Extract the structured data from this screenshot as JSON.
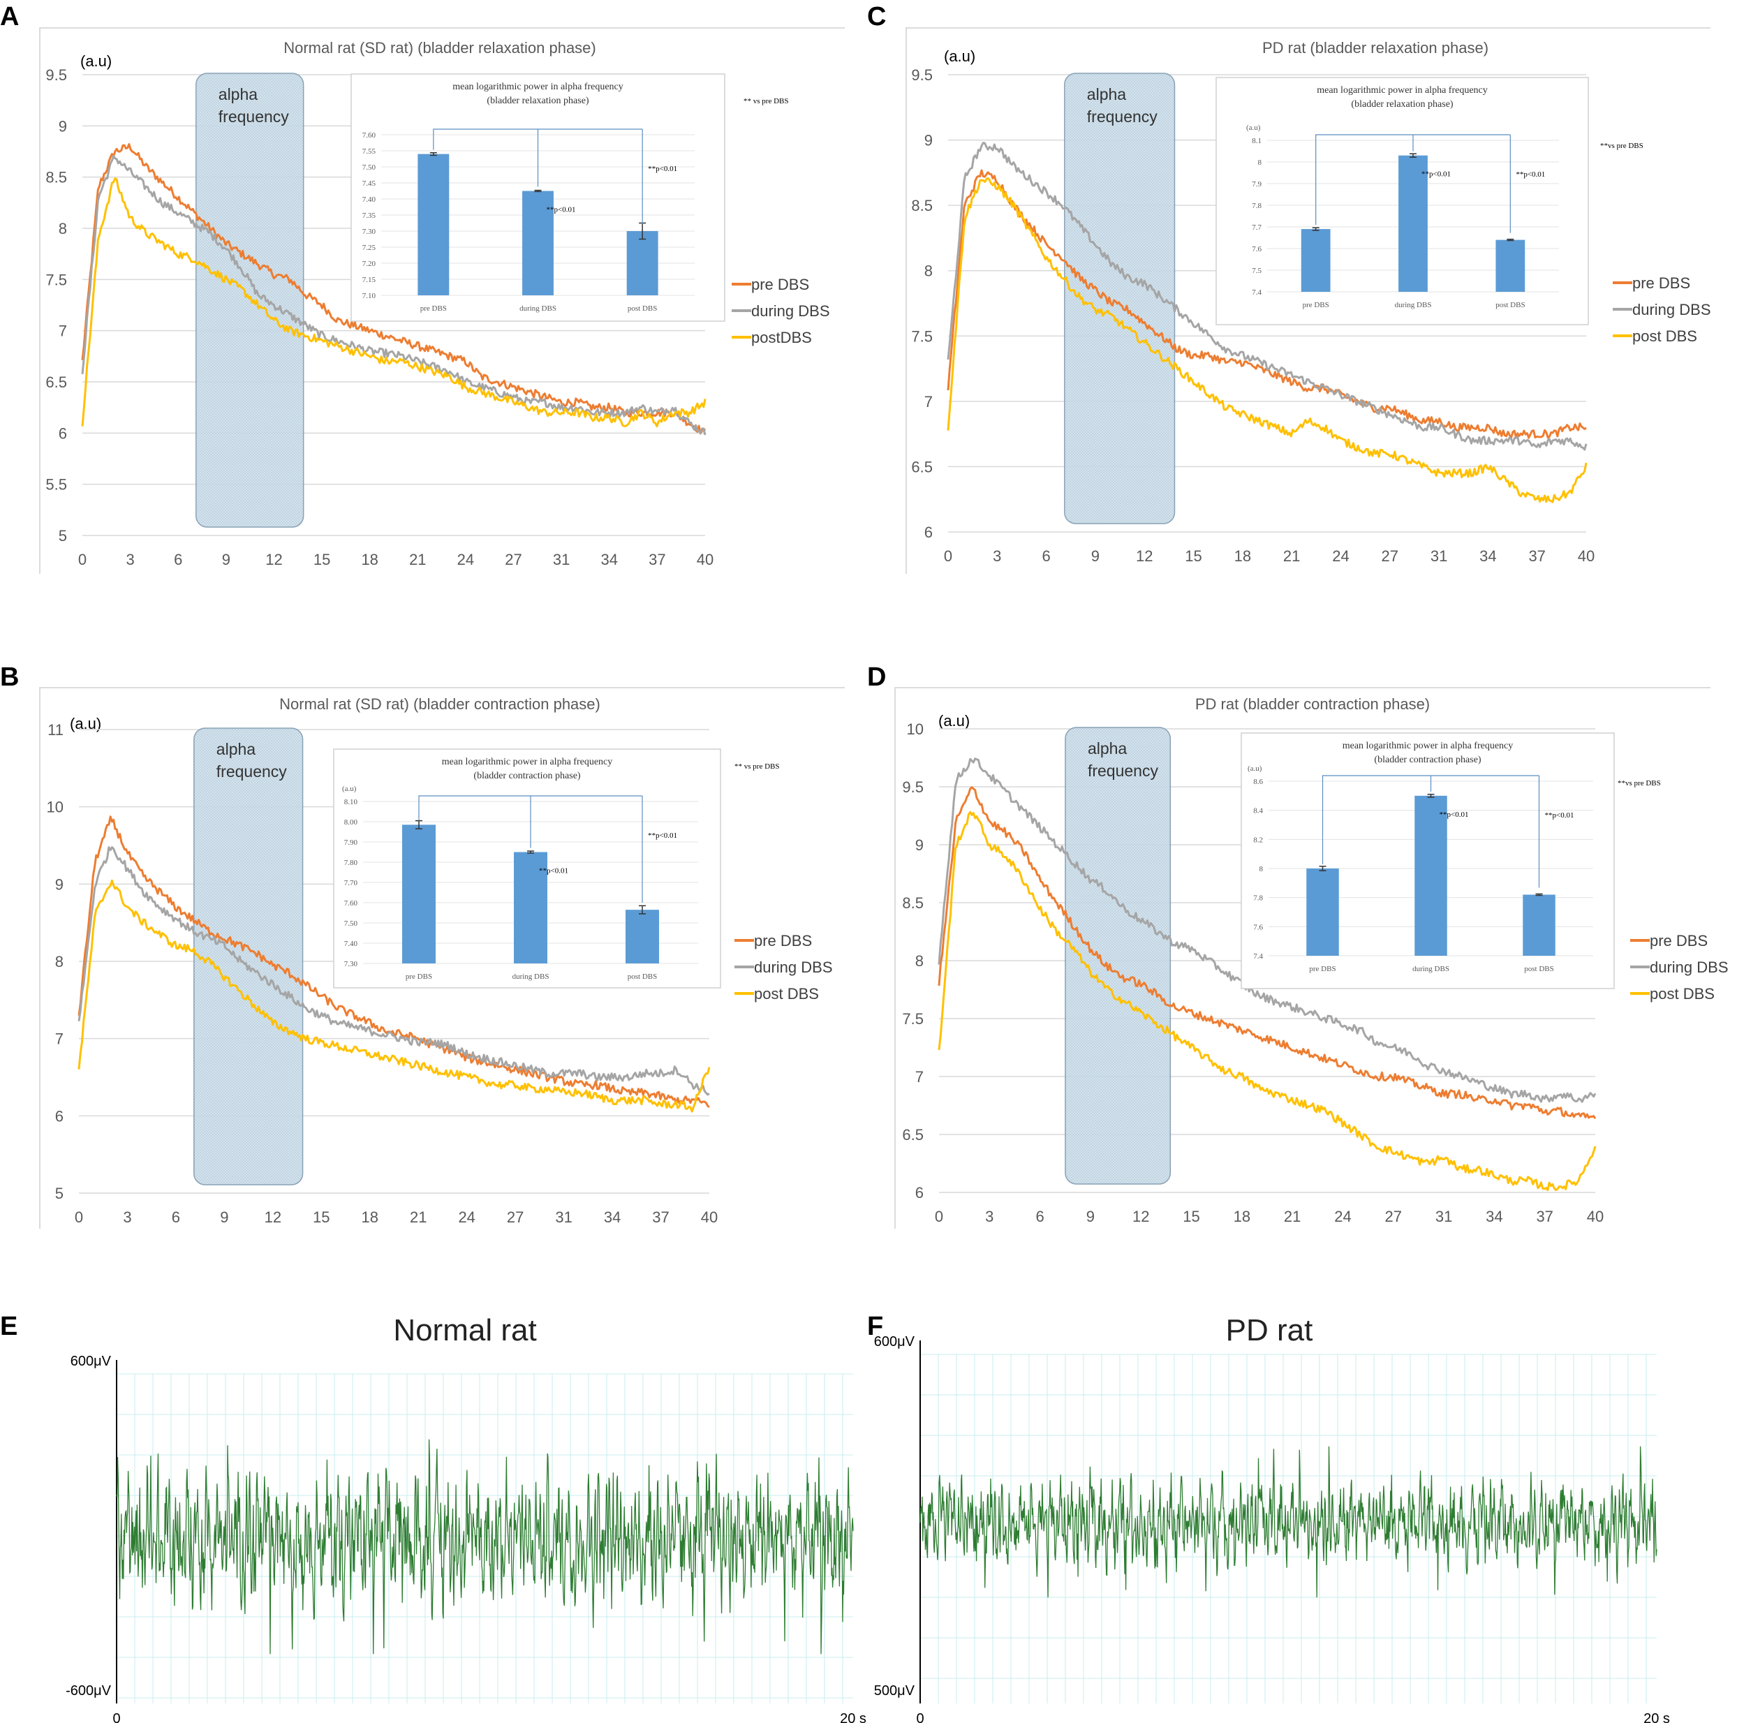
{
  "chart_data": [
    {
      "panel": "A",
      "type": "line",
      "title": "Normal rat (SD rat) (bladder relaxation phase)",
      "ylabel": "(a.u)",
      "x_tick_labels": [
        "0",
        "3",
        "6",
        "9",
        "12",
        "15",
        "18",
        "21",
        "24",
        "27",
        "31",
        "34",
        "37",
        "40"
      ],
      "ylim": [
        5,
        9.5
      ],
      "y_ticks": [
        "5",
        "5.5",
        "6",
        "6.5",
        "7",
        "7.5",
        "8",
        "8.5",
        "9",
        "9.5"
      ],
      "band_label": [
        "alpha",
        "frequency"
      ],
      "band_range": [
        7.3,
        14.2
      ],
      "series": [
        {
          "name": "pre DBS",
          "color": "#ED7D31",
          "values": [
            6.7,
            8.4,
            8.75,
            8.8,
            8.6,
            8.45,
            8.3,
            8.15,
            8.0,
            7.85,
            7.75,
            7.65,
            7.55,
            7.5,
            7.35,
            7.25,
            7.1,
            7.05,
            7.0,
            6.95,
            6.9,
            6.85,
            6.8,
            6.75,
            6.7,
            6.55,
            6.5,
            6.45,
            6.4,
            6.35,
            6.3,
            6.3,
            6.25,
            6.25,
            6.2,
            6.2,
            6.2,
            6.2,
            6.1,
            6.0
          ]
        },
        {
          "name": "during DBS",
          "color": "#A5A5A5",
          "values": [
            6.6,
            8.3,
            8.7,
            8.55,
            8.4,
            8.25,
            8.15,
            8.05,
            7.95,
            7.8,
            7.6,
            7.35,
            7.25,
            7.15,
            7.05,
            6.95,
            6.9,
            6.85,
            6.8,
            6.78,
            6.75,
            6.7,
            6.65,
            6.6,
            6.5,
            6.45,
            6.4,
            6.35,
            6.3,
            6.3,
            6.25,
            6.25,
            6.2,
            6.2,
            6.2,
            6.25,
            6.2,
            6.25,
            6.1,
            6.0
          ]
        },
        {
          "name": "postDBS",
          "color": "#FFC000",
          "values": [
            6.1,
            7.9,
            8.5,
            8.1,
            7.95,
            7.85,
            7.75,
            7.7,
            7.6,
            7.5,
            7.4,
            7.25,
            7.1,
            7.0,
            6.95,
            6.9,
            6.85,
            6.8,
            6.75,
            6.7,
            6.7,
            6.65,
            6.6,
            6.55,
            6.45,
            6.4,
            6.35,
            6.3,
            6.25,
            6.2,
            6.2,
            6.2,
            6.15,
            6.15,
            6.1,
            6.2,
            6.1,
            6.2,
            6.2,
            6.3
          ]
        }
      ],
      "inset": {
        "title": [
          "mean logarithmic power in alpha frequency",
          "(bladder relaxation phase)"
        ],
        "unit_label": "",
        "categories": [
          "pre DBS",
          "during DBS",
          "post DBS"
        ],
        "values": [
          7.54,
          7.425,
          7.3
        ],
        "errors": [
          0.004,
          0.002,
          0.025
        ],
        "ylim": [
          7.1,
          7.6
        ],
        "y_ticks": [
          "7.10",
          "7.15",
          "7.20",
          "7.25",
          "7.30",
          "7.35",
          "7.40",
          "7.45",
          "7.50",
          "7.55",
          "7.60"
        ],
        "sig_labels": [
          "**p<0.01",
          "**p<0.01"
        ],
        "note": "** vs pre DBS"
      }
    },
    {
      "panel": "C",
      "type": "line",
      "title": "PD rat (bladder relaxation phase)",
      "ylabel": "(a.u)",
      "x_tick_labels": [
        "0",
        "3",
        "6",
        "9",
        "12",
        "15",
        "18",
        "21",
        "24",
        "27",
        "31",
        "34",
        "37",
        "40"
      ],
      "ylim": [
        6,
        9.5
      ],
      "y_ticks": [
        "6",
        "6.5",
        "7",
        "7.5",
        "8",
        "8.5",
        "9",
        "9.5"
      ],
      "band_label": [
        "alpha",
        "frequency"
      ],
      "band_range": [
        7.3,
        14.2
      ],
      "series": [
        {
          "name": "pre DBS",
          "color": "#ED7D31",
          "values": [
            7.1,
            8.5,
            8.75,
            8.7,
            8.5,
            8.35,
            8.2,
            8.1,
            7.95,
            7.85,
            7.75,
            7.7,
            7.6,
            7.5,
            7.4,
            7.35,
            7.35,
            7.3,
            7.3,
            7.25,
            7.2,
            7.15,
            7.1,
            7.1,
            7.05,
            7.0,
            6.95,
            6.95,
            6.9,
            6.85,
            6.85,
            6.8,
            6.8,
            6.8,
            6.75,
            6.75,
            6.75,
            6.75,
            6.8,
            6.8
          ]
        },
        {
          "name": "during DBS",
          "color": "#A5A5A5",
          "values": [
            7.3,
            8.7,
            8.95,
            8.95,
            8.8,
            8.7,
            8.6,
            8.5,
            8.35,
            8.2,
            8.05,
            7.95,
            7.9,
            7.8,
            7.7,
            7.6,
            7.5,
            7.4,
            7.35,
            7.3,
            7.25,
            7.2,
            7.15,
            7.1,
            7.05,
            7.0,
            6.95,
            6.9,
            6.85,
            6.8,
            6.8,
            6.75,
            6.7,
            6.7,
            6.7,
            6.7,
            6.65,
            6.7,
            6.7,
            6.65
          ]
        },
        {
          "name": "post DBS",
          "color": "#FFC000",
          "values": [
            6.8,
            8.4,
            8.7,
            8.65,
            8.5,
            8.3,
            8.1,
            7.95,
            7.8,
            7.7,
            7.65,
            7.55,
            7.45,
            7.35,
            7.25,
            7.15,
            7.05,
            6.95,
            6.9,
            6.85,
            6.8,
            6.75,
            6.85,
            6.8,
            6.7,
            6.65,
            6.6,
            6.6,
            6.55,
            6.5,
            6.45,
            6.45,
            6.45,
            6.5,
            6.4,
            6.3,
            6.25,
            6.25,
            6.3,
            6.5
          ]
        }
      ],
      "inset": {
        "title": [
          "mean logarithmic power in alpha frequency",
          "(bladder relaxation phase)"
        ],
        "unit_label": "(a.u)",
        "categories": [
          "pre DBS",
          "during DBS",
          "post DBS"
        ],
        "values": [
          7.69,
          8.03,
          7.64
        ],
        "errors": [
          0.006,
          0.008,
          0.003
        ],
        "ylim": [
          7.4,
          8.1
        ],
        "y_ticks": [
          "7.4",
          "7.5",
          "7.6",
          "7.7",
          "7.8",
          "7.9",
          "8",
          "8.1"
        ],
        "sig_labels": [
          "**p<0.01",
          "**p<0.01"
        ],
        "note": "**vs pre DBS"
      }
    },
    {
      "panel": "B",
      "type": "line",
      "title": "Normal rat (SD rat) (bladder contraction phase)",
      "ylabel": "(a.u)",
      "x_tick_labels": [
        "0",
        "3",
        "6",
        "9",
        "12",
        "15",
        "18",
        "21",
        "24",
        "27",
        "31",
        "34",
        "37",
        "40"
      ],
      "ylim": [
        5,
        11
      ],
      "y_ticks": [
        "5",
        "6",
        "7",
        "8",
        "9",
        "10",
        "11"
      ],
      "band_label": [
        "alpha",
        "frequency"
      ],
      "band_range": [
        7.3,
        14.2
      ],
      "series": [
        {
          "name": "pre DBS",
          "color": "#ED7D31",
          "values": [
            7.3,
            9.3,
            9.85,
            9.4,
            9.1,
            8.9,
            8.7,
            8.55,
            8.4,
            8.3,
            8.2,
            8.1,
            7.95,
            7.85,
            7.7,
            7.55,
            7.4,
            7.3,
            7.2,
            7.1,
            7.05,
            7.0,
            6.9,
            6.85,
            6.75,
            6.7,
            6.65,
            6.6,
            6.55,
            6.5,
            6.45,
            6.4,
            6.4,
            6.35,
            6.3,
            6.3,
            6.25,
            6.2,
            6.2,
            6.15
          ]
        },
        {
          "name": "during DBS",
          "color": "#A5A5A5",
          "values": [
            7.2,
            9.0,
            9.5,
            9.2,
            8.9,
            8.7,
            8.55,
            8.4,
            8.3,
            8.2,
            8.0,
            7.85,
            7.7,
            7.55,
            7.4,
            7.3,
            7.2,
            7.15,
            7.1,
            7.05,
            7.0,
            6.95,
            6.95,
            6.9,
            6.8,
            6.75,
            6.7,
            6.65,
            6.6,
            6.55,
            6.55,
            6.55,
            6.5,
            6.5,
            6.5,
            6.55,
            6.55,
            6.6,
            6.4,
            6.3
          ]
        },
        {
          "name": "post DBS",
          "color": "#FFC000",
          "values": [
            6.6,
            8.6,
            9.05,
            8.7,
            8.5,
            8.35,
            8.2,
            8.15,
            8.0,
            7.8,
            7.6,
            7.4,
            7.2,
            7.1,
            7.0,
            6.95,
            6.9,
            6.85,
            6.8,
            6.75,
            6.7,
            6.65,
            6.6,
            6.55,
            6.5,
            6.45,
            6.4,
            6.4,
            6.35,
            6.35,
            6.3,
            6.3,
            6.25,
            6.2,
            6.2,
            6.2,
            6.15,
            6.15,
            6.1,
            6.65
          ]
        }
      ],
      "inset": {
        "title": [
          "mean logarithmic power in alpha frequency",
          "(bladder contraction phase)"
        ],
        "unit_label": "(a.u)",
        "categories": [
          "pre DBS",
          "during DBS",
          "post DBS"
        ],
        "values": [
          7.985,
          7.85,
          7.565
        ],
        "errors": [
          0.02,
          0.005,
          0.02
        ],
        "ylim": [
          7.3,
          8.1
        ],
        "y_ticks": [
          "7.30",
          "7.40",
          "7.50",
          "7.60",
          "7.70",
          "7.80",
          "7.90",
          "8.00",
          "8.10"
        ],
        "sig_labels": [
          "**p<0.01",
          "**p<0.01"
        ],
        "note": "** vs pre DBS"
      }
    },
    {
      "panel": "D",
      "type": "line",
      "title": "PD rat (bladder contraction phase)",
      "ylabel": "(a.u)",
      "x_tick_labels": [
        "0",
        "3",
        "6",
        "9",
        "12",
        "15",
        "18",
        "21",
        "24",
        "27",
        "31",
        "34",
        "37",
        "40"
      ],
      "ylim": [
        6,
        10
      ],
      "y_ticks": [
        "6",
        "6.5",
        "7",
        "7.5",
        "8",
        "8.5",
        "9",
        "9.5",
        "10"
      ],
      "band_label": [
        "alpha",
        "frequency"
      ],
      "band_range": [
        7.7,
        14.1
      ],
      "series": [
        {
          "name": "pre DBS",
          "color": "#ED7D31",
          "values": [
            7.8,
            9.2,
            9.5,
            9.2,
            9.1,
            8.95,
            8.7,
            8.5,
            8.3,
            8.1,
            7.95,
            7.85,
            7.8,
            7.7,
            7.6,
            7.55,
            7.5,
            7.45,
            7.4,
            7.35,
            7.3,
            7.25,
            7.2,
            7.15,
            7.1,
            7.05,
            7.0,
            7.0,
            6.95,
            6.9,
            6.85,
            6.85,
            6.8,
            6.8,
            6.75,
            6.75,
            6.7,
            6.7,
            6.65,
            6.65
          ]
        },
        {
          "name": "during DBS",
          "color": "#A5A5A5",
          "values": [
            8.0,
            9.55,
            9.75,
            9.6,
            9.45,
            9.3,
            9.15,
            9.0,
            8.85,
            8.7,
            8.6,
            8.45,
            8.35,
            8.25,
            8.15,
            8.1,
            8.0,
            7.9,
            7.8,
            7.7,
            7.65,
            7.6,
            7.55,
            7.5,
            7.45,
            7.4,
            7.3,
            7.25,
            7.2,
            7.1,
            7.05,
            7.0,
            6.95,
            6.9,
            6.85,
            6.85,
            6.8,
            6.85,
            6.8,
            6.85
          ]
        },
        {
          "name": "post DBS",
          "color": "#FFC000",
          "values": [
            7.2,
            9.0,
            9.3,
            9.0,
            8.9,
            8.7,
            8.45,
            8.25,
            8.1,
            7.9,
            7.75,
            7.65,
            7.55,
            7.45,
            7.35,
            7.25,
            7.15,
            7.05,
            7.0,
            6.9,
            6.85,
            6.8,
            6.75,
            6.7,
            6.6,
            6.5,
            6.4,
            6.35,
            6.3,
            6.25,
            6.3,
            6.2,
            6.2,
            6.15,
            6.1,
            6.1,
            6.05,
            6.05,
            6.1,
            6.4
          ]
        }
      ],
      "inset": {
        "title": [
          "mean logarithmic power in alpha frequency",
          "(bladder contraction phase)"
        ],
        "unit_label": "(a.u)",
        "categories": [
          "pre DBS",
          "during DBS",
          "post DBS"
        ],
        "values": [
          8.0,
          8.5,
          7.82
        ],
        "errors": [
          0.015,
          0.01,
          0.005
        ],
        "ylim": [
          7.4,
          8.6
        ],
        "y_ticks": [
          "7.4",
          "7.6",
          "7.8",
          "8",
          "8.2",
          "8.4",
          "8.6"
        ],
        "sig_labels": [
          "**p<0.01",
          "**p<0.01"
        ],
        "note": "**vs pre DBS"
      }
    },
    {
      "panel": "E",
      "type": "line",
      "title": "Normal rat",
      "y_top_label": "600μV",
      "y_bottom_label": "-600μV",
      "x_start_label": "0",
      "x_end_label": "20 s",
      "trace_color": "#2E7D32",
      "amplitude_uV": 420
    },
    {
      "panel": "F",
      "type": "line",
      "title": "PD rat",
      "y_top_label": "600μV",
      "y_bottom_label": "500μV",
      "x_start_label": "0",
      "x_end_label": "20 s",
      "trace_color": "#2E7D32",
      "amplitude_uV": 260
    }
  ]
}
